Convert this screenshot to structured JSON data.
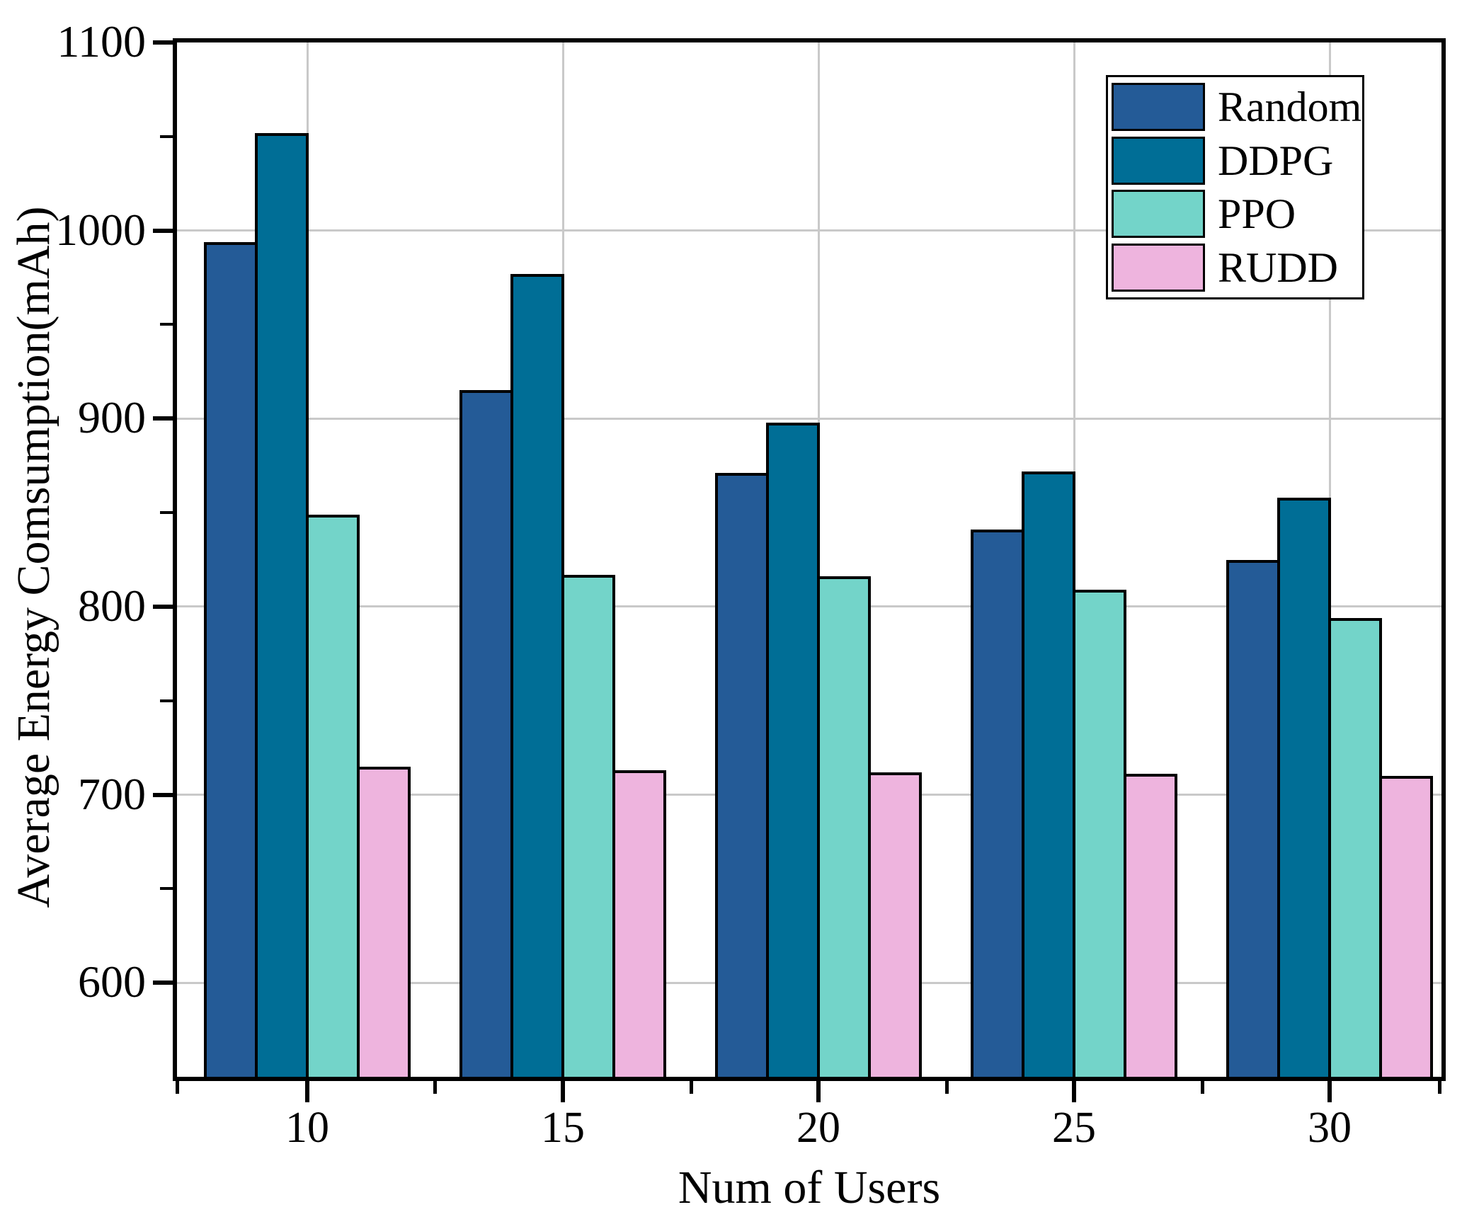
{
  "chart_data": {
    "type": "bar",
    "title": "",
    "xlabel": "Num of Users",
    "ylabel": "Average Energy Comsumption(mAh)",
    "categories": [
      "10",
      "15",
      "20",
      "25",
      "30"
    ],
    "series": [
      {
        "name": "Random",
        "color": "#245b97",
        "values": [
          994,
          915,
          871,
          841,
          825
        ]
      },
      {
        "name": "DDPG",
        "color": "#006e96",
        "values": [
          1052,
          977,
          898,
          872,
          858
        ]
      },
      {
        "name": "PPO",
        "color": "#73d4c9",
        "values": [
          849,
          817,
          816,
          809,
          794
        ]
      },
      {
        "name": "RUDD",
        "color": "#eeb4de",
        "values": [
          715,
          713,
          712,
          711,
          710
        ]
      }
    ],
    "ylim": [
      550,
      1100
    ],
    "yticks_major": [
      600,
      700,
      800,
      900,
      1000,
      1100
    ],
    "yticks_minor": [
      650,
      750,
      850,
      950,
      1050
    ],
    "grid": true,
    "gridline_color": "#c9c9c9",
    "axis_color": "#000000",
    "bar_edge_color": "#000000",
    "legend_position": "top-right"
  }
}
